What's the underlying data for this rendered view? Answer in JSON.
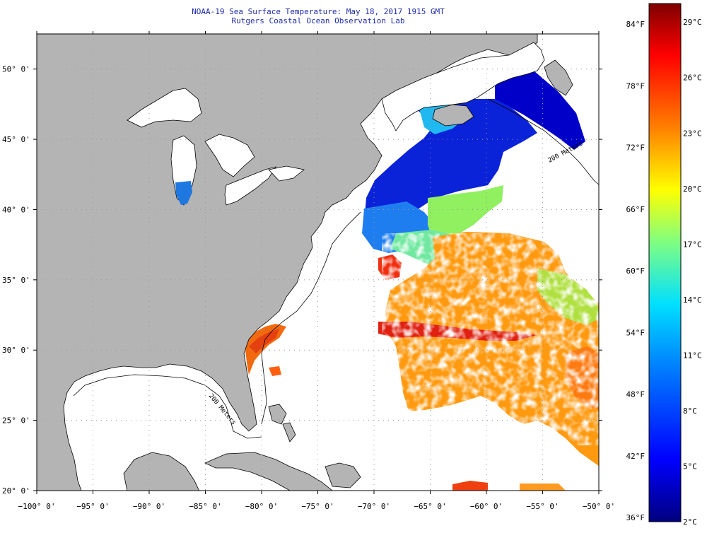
{
  "title": {
    "line1": "NOAA-19 Sea Surface Temperature:  May 18, 2017 1915 GMT",
    "line2": "Rutgers Coastal Ocean Observation Lab"
  },
  "map": {
    "lon_range": [
      -100,
      -50
    ],
    "lat_range": [
      20,
      52.5
    ],
    "lon_ticks": [
      {
        "value": -100,
        "label": "−100° 0'"
      },
      {
        "value": -95,
        "label": "−95° 0'"
      },
      {
        "value": -90,
        "label": "−90° 0'"
      },
      {
        "value": -85,
        "label": "−85° 0'"
      },
      {
        "value": -80,
        "label": "−80° 0'"
      },
      {
        "value": -75,
        "label": "−75° 0'"
      },
      {
        "value": -70,
        "label": "−70° 0'"
      },
      {
        "value": -65,
        "label": "−65° 0'"
      },
      {
        "value": -60,
        "label": "−60° 0'"
      },
      {
        "value": -55,
        "label": "−55° 0'"
      },
      {
        "value": -50,
        "label": "−50° 0'"
      }
    ],
    "lat_ticks": [
      {
        "value": 20,
        "label": "20° 0'"
      },
      {
        "value": 25,
        "label": "25° 0'"
      },
      {
        "value": 30,
        "label": "30° 0'"
      },
      {
        "value": 35,
        "label": "35° 0'"
      },
      {
        "value": 40,
        "label": "40° 0'"
      },
      {
        "value": 45,
        "label": "45° 0'"
      },
      {
        "value": 50,
        "label": "50° 0'"
      }
    ],
    "contour_labels": [
      "200 Meters",
      "200 Meters"
    ],
    "colors": {
      "land": "#b4b4b4",
      "ocean_nodata": "#ffffff",
      "grid": "#999999"
    }
  },
  "colorbar": {
    "celsius_range": [
      2,
      30
    ],
    "fahrenheit_labels": [
      "84°F",
      "78°F",
      "72°F",
      "66°F",
      "60°F",
      "54°F",
      "48°F",
      "42°F",
      "36°F"
    ],
    "fahrenheit_values": [
      84,
      78,
      72,
      66,
      60,
      54,
      48,
      42,
      36
    ],
    "celsius_labels": [
      "29°C",
      "26°C",
      "23°C",
      "20°C",
      "17°C",
      "14°C",
      "11°C",
      "8°C",
      "5°C",
      "2°C"
    ],
    "celsius_values": [
      29,
      26,
      23,
      20,
      17,
      14,
      11,
      8,
      5,
      2
    ],
    "stops": [
      "#00007f",
      "#0000ff",
      "#0080ff",
      "#00e0ff",
      "#80ff80",
      "#ffff00",
      "#ff8000",
      "#ff0000",
      "#7f0000"
    ]
  }
}
